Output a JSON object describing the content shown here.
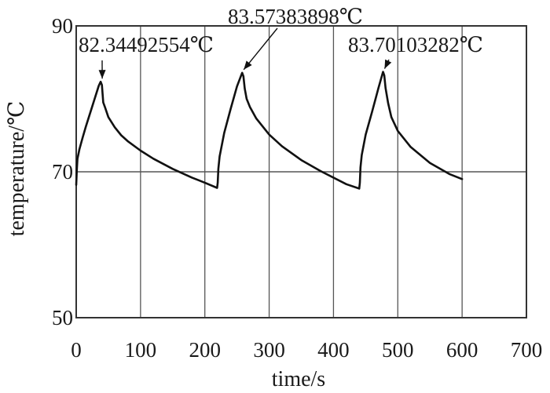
{
  "chart_data": {
    "type": "line",
    "xlabel": "time/s",
    "ylabel": "temperature/℃",
    "xlim": [
      0,
      700
    ],
    "ylim": [
      50,
      90
    ],
    "x_ticks": [
      "0",
      "100",
      "200",
      "300",
      "400",
      "500",
      "600",
      "700"
    ],
    "y_ticks": [
      "50",
      "70",
      "90"
    ],
    "grid": true,
    "series": [
      {
        "x": [
          0,
          1,
          2,
          5,
          10,
          15,
          20,
          25,
          30,
          35,
          38,
          40,
          42,
          45,
          50,
          60,
          70,
          80,
          100,
          120,
          150,
          180,
          200,
          219,
          220,
          221,
          223,
          230,
          240,
          250,
          258,
          260,
          262,
          265,
          270,
          280,
          300,
          320,
          350,
          380,
          420,
          440,
          441,
          442,
          444,
          450,
          460,
          470,
          477,
          479,
          481,
          485,
          490,
          500,
          520,
          550,
          580,
          600
        ],
        "y": [
          68.2,
          70.3,
          71.8,
          73.1,
          74.7,
          76.2,
          77.6,
          79.0,
          80.4,
          81.8,
          82.34,
          81.9,
          79.5,
          78.8,
          77.5,
          76.1,
          75.0,
          74.2,
          72.9,
          71.8,
          70.4,
          69.2,
          68.5,
          67.8,
          68.5,
          70.4,
          72.1,
          75.3,
          78.6,
          81.7,
          83.57,
          83.1,
          81.4,
          80.0,
          78.9,
          77.3,
          75.1,
          73.5,
          71.6,
          70.1,
          68.3,
          67.7,
          68.5,
          70.6,
          72.3,
          75.1,
          78.2,
          81.5,
          83.7,
          83.2,
          81.5,
          79.4,
          77.5,
          75.6,
          73.4,
          71.2,
          69.7,
          69.0
        ],
        "color": "#111111"
      }
    ],
    "annotations": [
      {
        "label": "82.34492554℃",
        "x": 38,
        "y": 82.34492554
      },
      {
        "label": "83.57383898℃",
        "x": 258,
        "y": 83.57383898
      },
      {
        "label": "83.70103282℃",
        "x": 477,
        "y": 83.70103282
      }
    ]
  }
}
